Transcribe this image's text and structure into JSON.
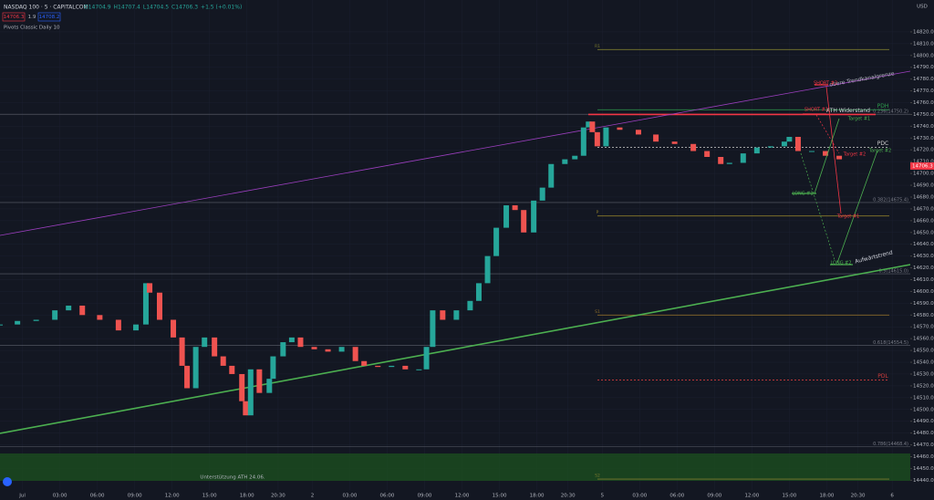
{
  "header": {
    "symbol": "NASDAQ 100 · 5 · CAPITALCOM",
    "ohlc": [
      "O14704.9",
      "H14707.4",
      "L14704.5",
      "C14706.3",
      "+1.5 (+0.01%)"
    ],
    "sell": "14706.3",
    "spread": "1.9",
    "buy": "14708.2",
    "indicator": "Pivots Classic Daily 10"
  },
  "chart_data": {
    "type": "candlestick",
    "currency": "USD",
    "color_up": "#26a69a",
    "color_down": "#ef5350",
    "x": [
      -1.8,
      -0.4,
      1.1,
      2.6,
      3.7,
      4.8,
      6.2,
      7.7,
      9.1,
      9.9,
      10.2,
      11.0,
      12.1,
      12.8,
      13.2,
      13.9,
      14.6,
      15.4,
      16.1,
      16.8,
      17.6,
      17.9,
      18.3,
      19.0,
      19.8,
      20.1,
      20.9,
      21.6,
      22.3,
      23.4,
      24.5,
      25.6,
      26.7,
      27.4,
      28.5,
      29.6,
      30.7,
      31.8,
      32.4,
      32.9,
      33.7,
      34.8,
      35.9,
      36.6,
      37.3,
      38.0,
      38.8,
      39.5,
      40.2,
      41.0,
      41.7,
      42.4,
      43.5,
      44.3,
      45.0,
      45.4,
      45.7,
      46.1,
      46.8,
      47.9,
      49.4,
      50.8,
      52.3,
      53.8,
      54.9,
      56.0,
      56.7,
      57.8,
      58.9,
      60.0,
      61.1,
      61.5,
      62.2,
      63.3,
      64.4,
      65.5
    ],
    "values": [
      14572,
      14575,
      14576,
      14584,
      14588,
      14580,
      14576,
      14567,
      14572,
      14607,
      14599,
      14576,
      14561,
      14537,
      14518,
      14553,
      14561,
      14545,
      14537,
      14530,
      14507,
      14495,
      14534,
      14514,
      14526,
      14545,
      14557,
      14561,
      14553,
      14551,
      14549,
      14553,
      14541,
      14537,
      14536,
      14537,
      14534,
      14534,
      14553,
      14584,
      14576,
      14584,
      14592,
      14607,
      14630,
      14654,
      14673,
      14669,
      14650,
      14677,
      14688,
      14708,
      14712,
      14715,
      14739,
      14744,
      14735,
      14723,
      14739,
      14737,
      14733,
      14727,
      14725,
      14719,
      14714,
      14708,
      14709,
      14717,
      14722,
      14723,
      14727,
      14731,
      14719,
      14719,
      14715,
      14712
    ],
    "last_price": 14706.3,
    "xlim": [
      -1.8,
      71.2
    ],
    "ylim": [
      14431,
      14847
    ],
    "xticks": [
      {
        "value": 0,
        "label": "Jul"
      },
      {
        "value": 3,
        "label": "03:00"
      },
      {
        "value": 6,
        "label": "06:00"
      },
      {
        "value": 9,
        "label": "09:00"
      },
      {
        "value": 12,
        "label": "12:00"
      },
      {
        "value": 15,
        "label": "15:00"
      },
      {
        "value": 18,
        "label": "18:00"
      },
      {
        "value": 20.5,
        "label": "20:30"
      },
      {
        "value": 23.25,
        "label": "2"
      },
      {
        "value": 26.25,
        "label": "03:00"
      },
      {
        "value": 29.25,
        "label": "06:00"
      },
      {
        "value": 32.25,
        "label": "09:00"
      },
      {
        "value": 35.25,
        "label": "12:00"
      },
      {
        "value": 38.25,
        "label": "15:00"
      },
      {
        "value": 41.25,
        "label": "18:00"
      },
      {
        "value": 43.75,
        "label": "20:30"
      },
      {
        "value": 46.5,
        "label": "5"
      },
      {
        "value": 49.5,
        "label": "03:00"
      },
      {
        "value": 52.5,
        "label": "06:00"
      },
      {
        "value": 55.5,
        "label": "09:00"
      },
      {
        "value": 58.5,
        "label": "12:00"
      },
      {
        "value": 61.5,
        "label": "15:00"
      },
      {
        "value": 64.5,
        "label": "18:00"
      },
      {
        "value": 67,
        "label": "20:30"
      },
      {
        "value": 69.75,
        "label": "6"
      }
    ],
    "yticks": [
      {
        "value": 14440,
        "label": "14440.00"
      },
      {
        "value": 14450,
        "label": "14450.00"
      },
      {
        "value": 14460,
        "label": "14460.00"
      },
      {
        "value": 14470,
        "label": "14470.00"
      },
      {
        "value": 14480,
        "label": "14480.00"
      },
      {
        "value": 14490,
        "label": "14490.00"
      },
      {
        "value": 14500,
        "label": "14500.00"
      },
      {
        "value": 14510,
        "label": "14510.00"
      },
      {
        "value": 14520,
        "label": "14520.00"
      },
      {
        "value": 14530,
        "label": "14530.00"
      },
      {
        "value": 14540,
        "label": "14540.00"
      },
      {
        "value": 14550,
        "label": "14550.00"
      },
      {
        "value": 14560,
        "label": "14560.00"
      },
      {
        "value": 14570,
        "label": "14570.00"
      },
      {
        "value": 14580,
        "label": "14580.00"
      },
      {
        "value": 14590,
        "label": "14590.00"
      },
      {
        "value": 14600,
        "label": "14600.00"
      },
      {
        "value": 14610,
        "label": "14610.00"
      },
      {
        "value": 14620,
        "label": "14620.00"
      },
      {
        "value": 14630,
        "label": "14630.00"
      },
      {
        "value": 14640,
        "label": "14640.00"
      },
      {
        "value": 14650,
        "label": "14650.00"
      },
      {
        "value": 14660,
        "label": "14660.00"
      },
      {
        "value": 14670,
        "label": "14670.00"
      },
      {
        "value": 14680,
        "label": "14680.00"
      },
      {
        "value": 14690,
        "label": "14690.00"
      },
      {
        "value": 14700,
        "label": "14700.00"
      },
      {
        "value": 14710,
        "label": "14710.00"
      },
      {
        "value": 14720,
        "label": "14720.00"
      },
      {
        "value": 14730,
        "label": "14730.00"
      },
      {
        "value": 14740,
        "label": "14740.00"
      },
      {
        "value": 14750,
        "label": "14750.00"
      },
      {
        "value": 14760,
        "label": "14760.00"
      },
      {
        "value": 14770,
        "label": "14770.00"
      },
      {
        "value": 14780,
        "label": "14780.00"
      },
      {
        "value": 14790,
        "label": "14790.00"
      },
      {
        "value": 14800,
        "label": "14800.00"
      },
      {
        "value": 14810,
        "label": "14810.00"
      },
      {
        "value": 14820,
        "label": "14820.00"
      }
    ],
    "fib_levels": [
      {
        "value": 14750.2,
        "label": "0.236(14750.2)"
      },
      {
        "value": 14675.4,
        "label": "0.382(14675.4)"
      },
      {
        "value": 14615.0,
        "label": "0.5(14615.0)"
      },
      {
        "value": 14554.5,
        "label": "0.618(14554.5)"
      },
      {
        "value": 14468.4,
        "label": "0.786(14468.4)"
      }
    ],
    "levels": [
      {
        "name": "R1",
        "value": 14805,
        "color": "#7a7a2e",
        "dash": false
      },
      {
        "name": "P",
        "value": 14664,
        "color": "#8a7a2a",
        "dash": false
      },
      {
        "name": "S1",
        "value": 14580,
        "color": "#8a6a2a",
        "dash": false
      },
      {
        "name": "S2",
        "value": 14441,
        "color": "#7a7a2e",
        "dash": false
      },
      {
        "name": "PDH",
        "value": 14754,
        "color": "#2e9e4e",
        "dash": false
      },
      {
        "name": "PDC",
        "value": 14722,
        "color": "#d0d0d0",
        "dash": true
      },
      {
        "name": "PDL",
        "value": 14525,
        "color": "#d23c3c",
        "dash": true
      },
      {
        "name": "ATH Widerstand",
        "value": 14750,
        "color": "#f23645",
        "dash": false
      }
    ],
    "annotations": [
      "obere Trendkanalgrenze",
      "Aufwärtstrend",
      "Unterstützung ATH 24.06.",
      "SHORT #2",
      "SHORT #1",
      "LONG #1",
      "LONG #2",
      "Target #1",
      "Target #2",
      "Target #2",
      "Target #1"
    ]
  }
}
